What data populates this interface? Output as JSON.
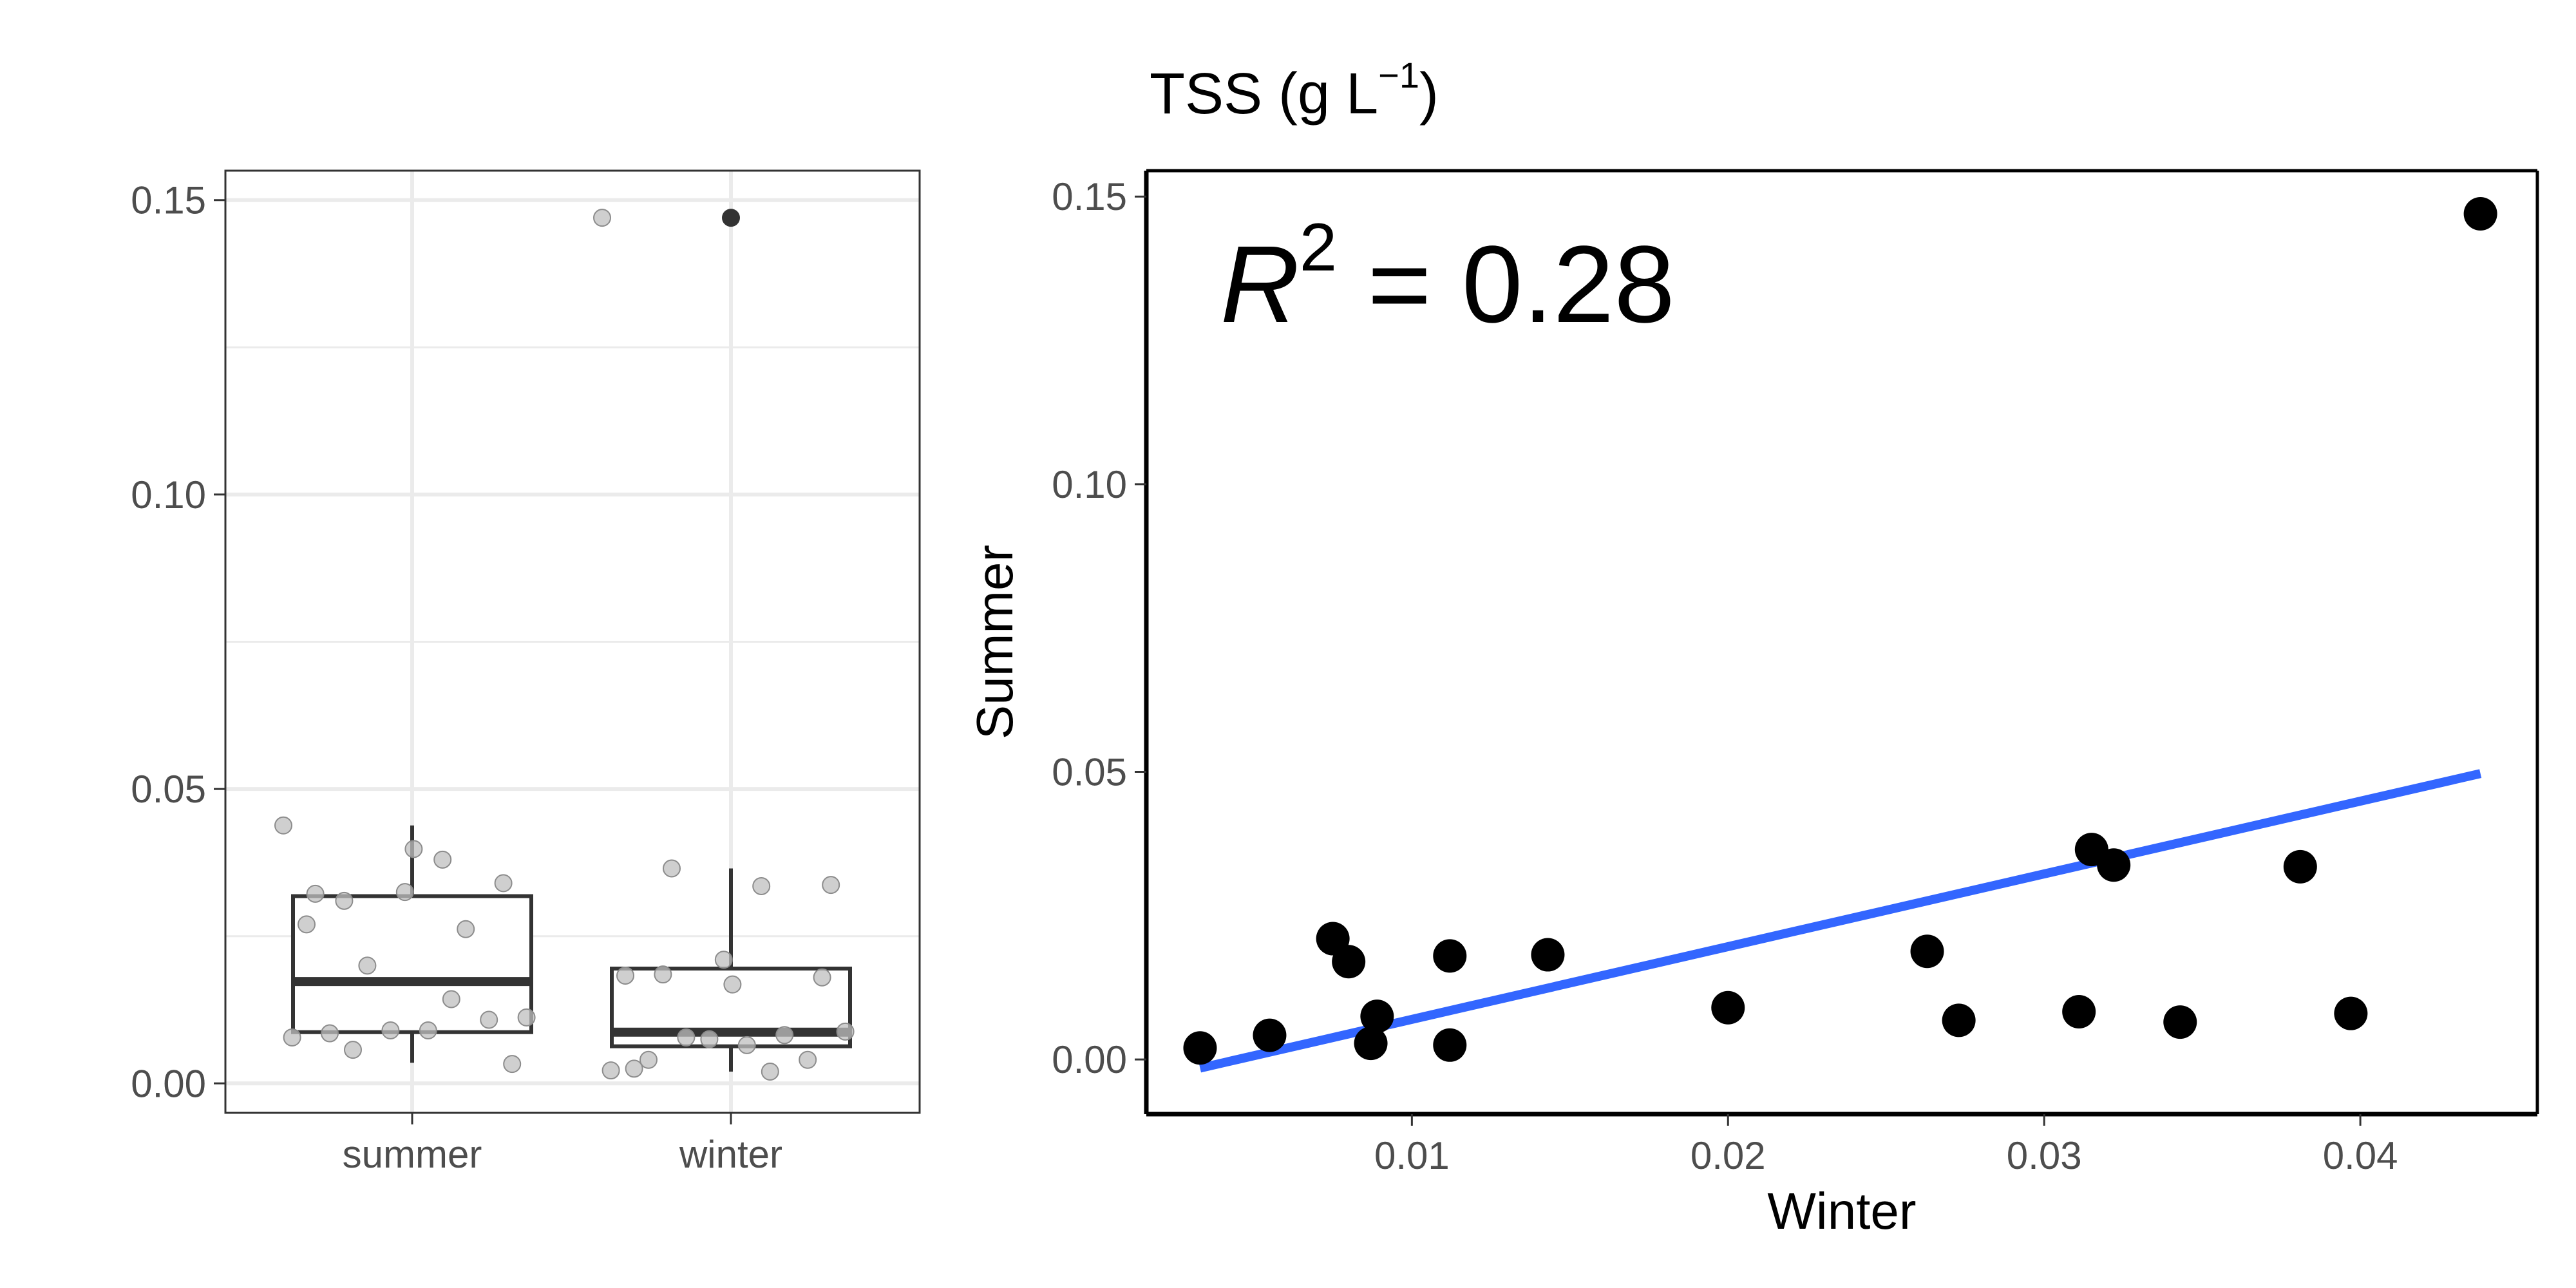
{
  "figure": {
    "title_main": "TSS (g L",
    "title_sup": "−1",
    "title_close": ")"
  },
  "chart_data": [
    {
      "type": "box",
      "categories": [
        "summer",
        "winter"
      ],
      "ylim": [
        -0.005,
        0.155
      ],
      "yticks": [
        0.0,
        0.05,
        0.1,
        0.15
      ],
      "ytick_labels": [
        "0.00",
        "0.05",
        "0.10",
        "0.15"
      ],
      "grid": true,
      "box_stats": [
        {
          "category": "summer",
          "whisker_low": 0.0035,
          "q1": 0.0087,
          "median": 0.0173,
          "q3": 0.0318,
          "whisker_high": 0.0438,
          "outliers": []
        },
        {
          "category": "winter",
          "whisker_low": 0.002,
          "q1": 0.0063,
          "median": 0.0087,
          "q3": 0.0195,
          "whisker_high": 0.0365,
          "outliers": [
            0.147
          ]
        }
      ],
      "jitter_points": {
        "summer": [
          0.0438,
          0.038,
          0.031,
          0.034,
          0.0325,
          0.027,
          0.0262,
          0.02,
          0.0112,
          0.009,
          0.0085,
          0.0108,
          0.009,
          0.0078,
          0.0143,
          0.0057,
          0.0033,
          0.0398,
          0.0322
        ],
        "winter": [
          0.147,
          0.0335,
          0.0185,
          0.018,
          0.021,
          0.0183,
          0.0082,
          0.0078,
          0.0088,
          0.0065,
          0.004,
          0.004,
          0.0075,
          0.0022,
          0.002,
          0.0365,
          0.0337,
          0.0168,
          0.0025
        ]
      }
    },
    {
      "type": "scatter",
      "title": "TSS (g L⁻¹)",
      "xlabel": "Winter",
      "ylabel": "Summer",
      "xlim": [
        0.0016,
        0.0456
      ],
      "ylim": [
        -0.0095,
        0.1545
      ],
      "xticks": [
        0.01,
        0.02,
        0.03,
        0.04
      ],
      "xtick_labels": [
        "0.01",
        "0.02",
        "0.03",
        "0.04"
      ],
      "yticks": [
        0.0,
        0.05,
        0.1,
        0.15
      ],
      "ytick_labels": [
        "0.00",
        "0.05",
        "0.10",
        "0.15"
      ],
      "grid": false,
      "annotation": {
        "symbol": "R",
        "sup": "2",
        "text": " = 0.28",
        "value": 0.28
      },
      "points": [
        {
          "x": 0.0033,
          "y": 0.002
        },
        {
          "x": 0.0055,
          "y": 0.0042
        },
        {
          "x": 0.0075,
          "y": 0.021
        },
        {
          "x": 0.008,
          "y": 0.017
        },
        {
          "x": 0.0087,
          "y": 0.0028
        },
        {
          "x": 0.0089,
          "y": 0.0075
        },
        {
          "x": 0.0112,
          "y": 0.018
        },
        {
          "x": 0.0112,
          "y": 0.0025
        },
        {
          "x": 0.0143,
          "y": 0.0182
        },
        {
          "x": 0.02,
          "y": 0.009
        },
        {
          "x": 0.0263,
          "y": 0.0188
        },
        {
          "x": 0.0273,
          "y": 0.0068
        },
        {
          "x": 0.0311,
          "y": 0.0083
        },
        {
          "x": 0.0315,
          "y": 0.0365
        },
        {
          "x": 0.0322,
          "y": 0.0338
        },
        {
          "x": 0.0343,
          "y": 0.0065
        },
        {
          "x": 0.0381,
          "y": 0.0335
        },
        {
          "x": 0.0397,
          "y": 0.008
        },
        {
          "x": 0.0438,
          "y": 0.147
        }
      ],
      "fit_line": {
        "x": [
          0.0033,
          0.0438
        ],
        "y": [
          -0.0015,
          0.0497
        ],
        "color": "#3366ff"
      }
    }
  ],
  "colors": {
    "points": "#000000",
    "jitter": "#bfbfbf",
    "fit": "#3366ff",
    "outlier": "#333333"
  }
}
